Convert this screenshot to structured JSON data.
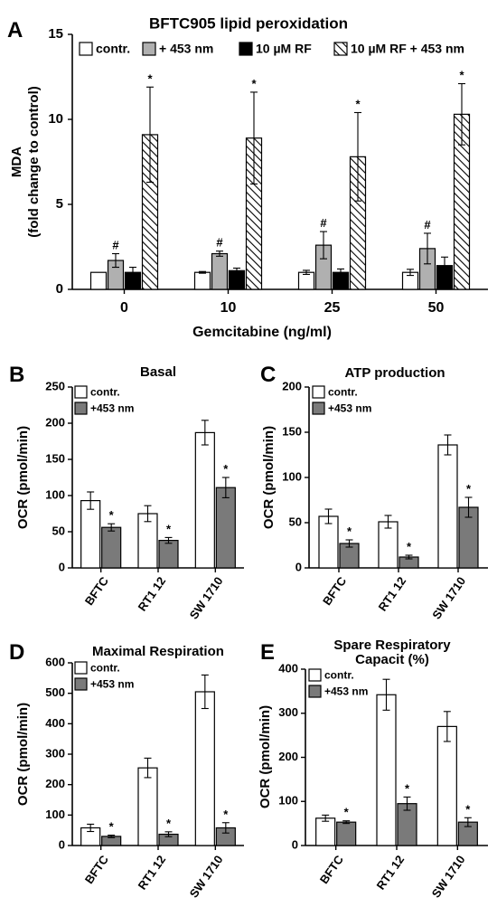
{
  "colors": {
    "contr": "#ffffff",
    "light": "#b0b0b0",
    "dark_gray": "#7a7a7a",
    "black": "#000000"
  },
  "chart_data": [
    {
      "panel": "A",
      "type": "bar",
      "title": "BFTC905 lipid peroxidation",
      "ylabel": "MDA\n(fold change to control)",
      "xlabel": "Gemcitabine (ng/ml)",
      "ylim": [
        0,
        15
      ],
      "yticks": [
        0,
        5,
        10,
        15
      ],
      "categories": [
        "0",
        "10",
        "25",
        "50"
      ],
      "legend_placement": "top",
      "series": [
        {
          "name": "contr.",
          "fill": "white",
          "values": [
            1.0,
            1.0,
            1.0,
            1.0
          ],
          "errors": [
            0.0,
            0.05,
            0.12,
            0.18
          ],
          "marks": [
            "",
            "",
            "",
            ""
          ]
        },
        {
          "name": "+ 453 nm",
          "fill": "gray",
          "values": [
            1.7,
            2.1,
            2.6,
            2.4
          ],
          "errors": [
            0.4,
            0.15,
            0.8,
            0.9
          ],
          "marks": [
            "#",
            "#",
            "#",
            "#"
          ]
        },
        {
          "name": "10 µM RF",
          "fill": "black",
          "values": [
            1.0,
            1.1,
            1.0,
            1.4
          ],
          "errors": [
            0.3,
            0.15,
            0.2,
            0.5
          ],
          "marks": [
            "",
            "",
            "",
            ""
          ]
        },
        {
          "name": "10 µM RF + 453 nm",
          "fill": "hatch",
          "values": [
            9.1,
            8.9,
            7.8,
            10.3
          ],
          "errors": [
            2.8,
            2.7,
            2.6,
            1.8
          ],
          "marks": [
            "*",
            "*",
            "*",
            "*"
          ]
        }
      ]
    },
    {
      "panel": "B",
      "type": "bar",
      "title": "Basal",
      "ylabel": "OCR (pmol/min)",
      "ylim": [
        0,
        250
      ],
      "yticks": [
        0,
        50,
        100,
        150,
        200,
        250
      ],
      "categories": [
        "BFTC",
        "RT1 12",
        "SW 1710"
      ],
      "legend_placement": "top-left",
      "series": [
        {
          "name": "contr.",
          "fill": "white",
          "values": [
            93,
            75,
            187
          ],
          "errors": [
            12,
            11,
            17
          ],
          "marks": [
            "",
            "",
            ""
          ]
        },
        {
          "name": "+453 nm",
          "fill": "darkgray",
          "values": [
            56,
            38,
            111
          ],
          "errors": [
            5,
            4,
            14
          ],
          "marks": [
            "*",
            "*",
            "*"
          ]
        }
      ]
    },
    {
      "panel": "C",
      "type": "bar",
      "title": "ATP production",
      "ylabel": "OCR (pmol/min)",
      "ylim": [
        0,
        200
      ],
      "yticks": [
        0,
        50,
        100,
        150,
        200
      ],
      "categories": [
        "BFTC",
        "RT1 12",
        "SW 1710"
      ],
      "legend_placement": "top-left",
      "series": [
        {
          "name": "contr.",
          "fill": "white",
          "values": [
            57,
            51,
            136
          ],
          "errors": [
            8,
            7,
            11
          ],
          "marks": [
            "",
            "",
            ""
          ]
        },
        {
          "name": "+453 nm",
          "fill": "darkgray",
          "values": [
            27,
            12,
            67
          ],
          "errors": [
            4,
            2,
            11
          ],
          "marks": [
            "*",
            "*",
            "*"
          ]
        }
      ]
    },
    {
      "panel": "D",
      "type": "bar",
      "title": "Maximal Respiration",
      "ylabel": "OCR (pmol/min)",
      "ylim": [
        0,
        600
      ],
      "yticks": [
        0,
        100,
        200,
        300,
        400,
        500,
        600
      ],
      "categories": [
        "BFTC",
        "RT1 12",
        "SW 1710"
      ],
      "legend_placement": "top-left",
      "series": [
        {
          "name": "contr.",
          "fill": "white",
          "values": [
            58,
            255,
            505
          ],
          "errors": [
            12,
            32,
            55
          ],
          "marks": [
            "",
            "",
            ""
          ]
        },
        {
          "name": "+453 nm",
          "fill": "darkgray",
          "values": [
            30,
            37,
            58
          ],
          "errors": [
            4,
            8,
            17
          ],
          "marks": [
            "*",
            "*",
            "*"
          ]
        }
      ]
    },
    {
      "panel": "E",
      "type": "bar",
      "title": "Spare Respiratory\nCapacit (%)",
      "ylabel": "OCR (pmol/min)",
      "ylim": [
        0,
        400
      ],
      "yticks": [
        0,
        100,
        200,
        300,
        400
      ],
      "categories": [
        "BFTC",
        "RT1 12",
        "SW 1710"
      ],
      "legend_placement": "top-left",
      "series": [
        {
          "name": "contr.",
          "fill": "white",
          "values": [
            62,
            342,
            270
          ],
          "errors": [
            7,
            35,
            34
          ],
          "marks": [
            "",
            "",
            ""
          ]
        },
        {
          "name": "+453 nm",
          "fill": "darkgray",
          "values": [
            53,
            95,
            53
          ],
          "errors": [
            3,
            15,
            10
          ],
          "marks": [
            "*",
            "*",
            "*"
          ]
        }
      ]
    }
  ]
}
